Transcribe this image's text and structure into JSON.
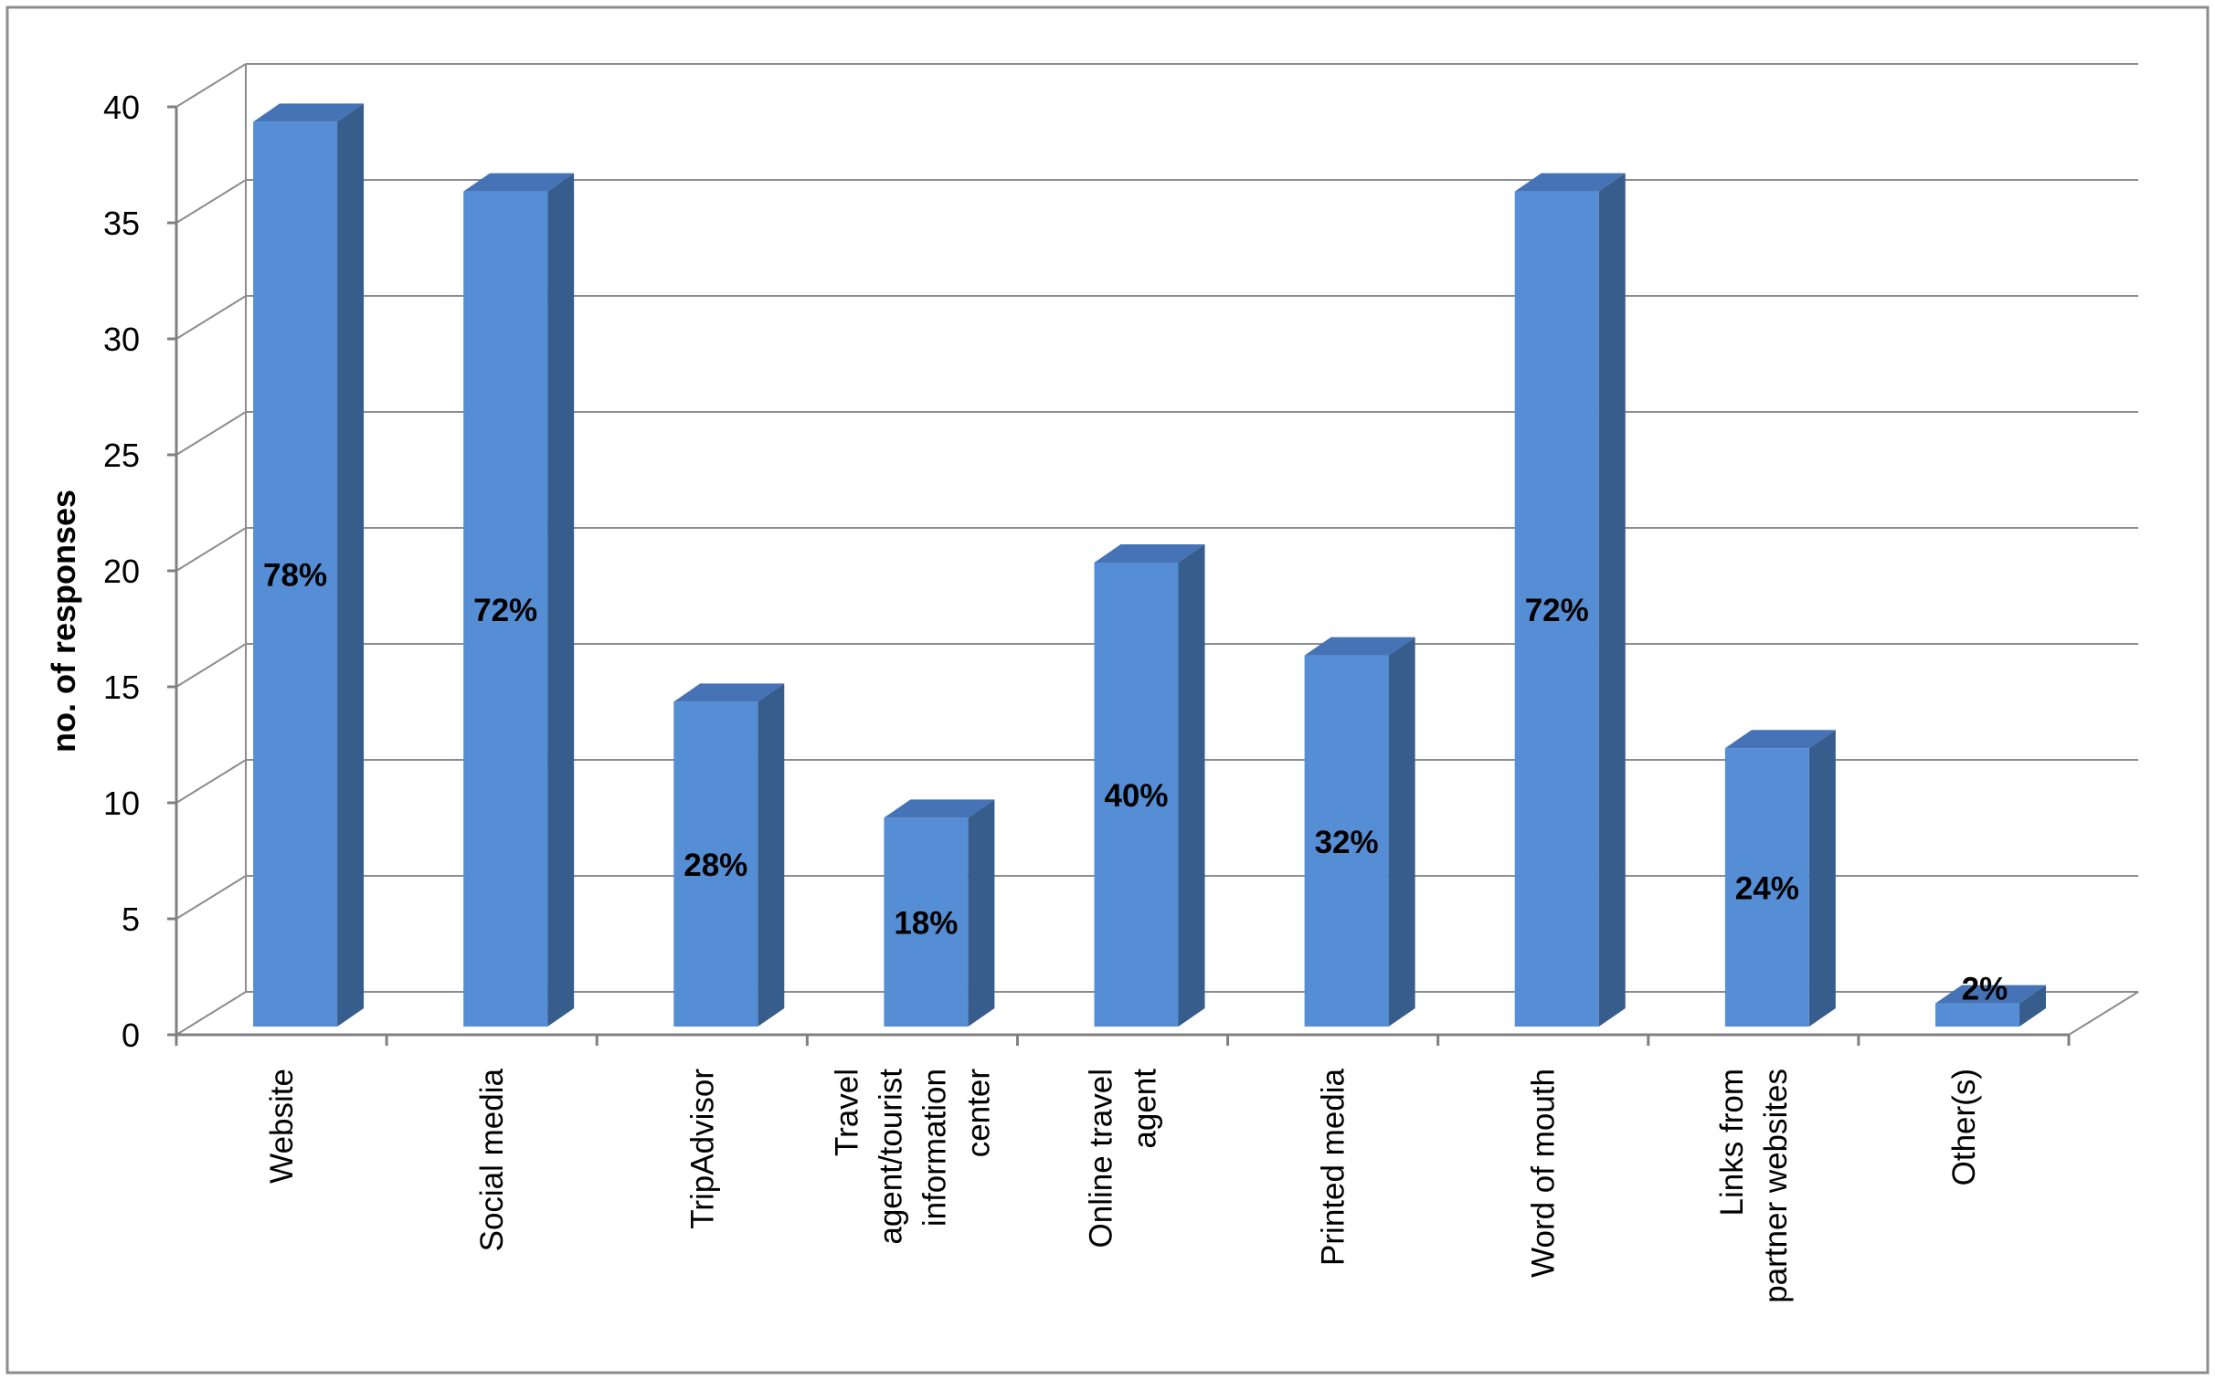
{
  "chart_data": {
    "type": "bar",
    "style": "3d-column",
    "categories": [
      [
        "Website"
      ],
      [
        "Social media"
      ],
      [
        "TripAdvisor"
      ],
      [
        "Travel",
        "agent/tourist",
        "information",
        "center"
      ],
      [
        "Online travel",
        "agent"
      ],
      [
        "Printed media"
      ],
      [
        "Word of mouth"
      ],
      [
        "Links from",
        "partner websites"
      ],
      [
        "Other(s)"
      ]
    ],
    "values": [
      39,
      36,
      14,
      9,
      20,
      16,
      36,
      12,
      1
    ],
    "data_labels": [
      "78%",
      "72%",
      "28%",
      "18%",
      "40%",
      "32%",
      "72%",
      "24%",
      "2%"
    ],
    "ylabel": "no. of responses",
    "xlabel": "",
    "ylim": [
      0,
      40
    ],
    "yticks": [
      0,
      5,
      10,
      15,
      20,
      25,
      30,
      35,
      40
    ],
    "grid": true,
    "colors": {
      "bar_front": "#558ed5",
      "bar_side": "#375d8c",
      "bar_top": "#4573b5",
      "grid": "#8c8c8c",
      "axis": "#808080",
      "frame": "#8c8c8c"
    }
  }
}
